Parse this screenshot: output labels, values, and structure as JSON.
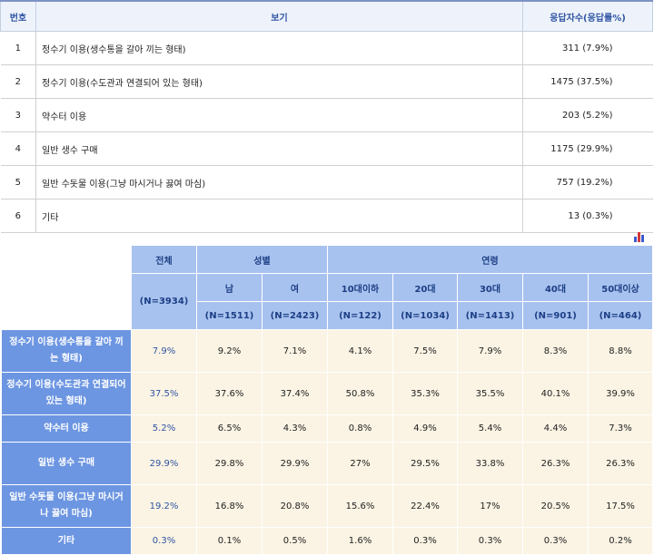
{
  "top_table": {
    "headers": {
      "no": "번호",
      "option": "보기",
      "responses": "응답자수(응답률%)"
    },
    "rows": [
      {
        "no": "1",
        "option": "정수기 이용(생수통을 갈아 끼는 형태)",
        "responses": "311 (7.9%)"
      },
      {
        "no": "2",
        "option": "정수기 이용(수도관과 연결되어 있는 형태)",
        "responses": "1475 (37.5%)"
      },
      {
        "no": "3",
        "option": "약수터 이용",
        "responses": "203 (5.2%)"
      },
      {
        "no": "4",
        "option": "일반 생수 구매",
        "responses": "1175 (29.9%)"
      },
      {
        "no": "5",
        "option": "일반 수돗물 이용(그냥 마시거나 끓여 마심)",
        "responses": "757 (19.2%)"
      },
      {
        "no": "6",
        "option": "기타",
        "responses": "13 (0.3%)"
      }
    ]
  },
  "chart_icon": {
    "icon": "bar-chart-icon",
    "colors": [
      "#3b5bd1",
      "#d23a3a",
      "#3b5bd1"
    ]
  },
  "cross_table": {
    "header": {
      "total": "전체",
      "total_n": "(N=3934)",
      "gender": "성별",
      "age": "연령",
      "columns": [
        {
          "label": "남",
          "n": "(N=1511)"
        },
        {
          "label": "여",
          "n": "(N=2423)"
        },
        {
          "label": "10대이하",
          "n": "(N=122)"
        },
        {
          "label": "20대",
          "n": "(N=1034)"
        },
        {
          "label": "30대",
          "n": "(N=1413)"
        },
        {
          "label": "40대",
          "n": "(N=901)"
        },
        {
          "label": "50대이상",
          "n": "(N=464)"
        }
      ]
    },
    "rows": [
      {
        "label": "정수기 이용(생수통을 갈아 끼는 형태)",
        "total": "7.9%",
        "values": [
          "9.2%",
          "7.1%",
          "4.1%",
          "7.5%",
          "7.9%",
          "8.3%",
          "8.8%"
        ]
      },
      {
        "label": "정수기 이용(수도관과 연결되어 있는 형태)",
        "total": "37.5%",
        "values": [
          "37.6%",
          "37.4%",
          "50.8%",
          "35.3%",
          "35.5%",
          "40.1%",
          "39.9%"
        ]
      },
      {
        "label": "약수터 이용",
        "total": "5.2%",
        "values": [
          "6.5%",
          "4.3%",
          "0.8%",
          "4.9%",
          "5.4%",
          "4.4%",
          "7.3%"
        ]
      },
      {
        "label": "일반 생수 구매",
        "total": "29.9%",
        "values": [
          "29.8%",
          "29.9%",
          "27%",
          "29.5%",
          "33.8%",
          "26.3%",
          "26.3%"
        ]
      },
      {
        "label": "일반 수돗물 이용(그냥 마시거나 끓여 마심)",
        "total": "19.2%",
        "values": [
          "16.8%",
          "20.8%",
          "15.6%",
          "22.4%",
          "17%",
          "20.5%",
          "17.5%"
        ]
      },
      {
        "label": "기타",
        "total": "0.3%",
        "values": [
          "0.1%",
          "0.5%",
          "1.6%",
          "0.3%",
          "0.3%",
          "0.3%",
          "0.2%"
        ]
      }
    ]
  }
}
